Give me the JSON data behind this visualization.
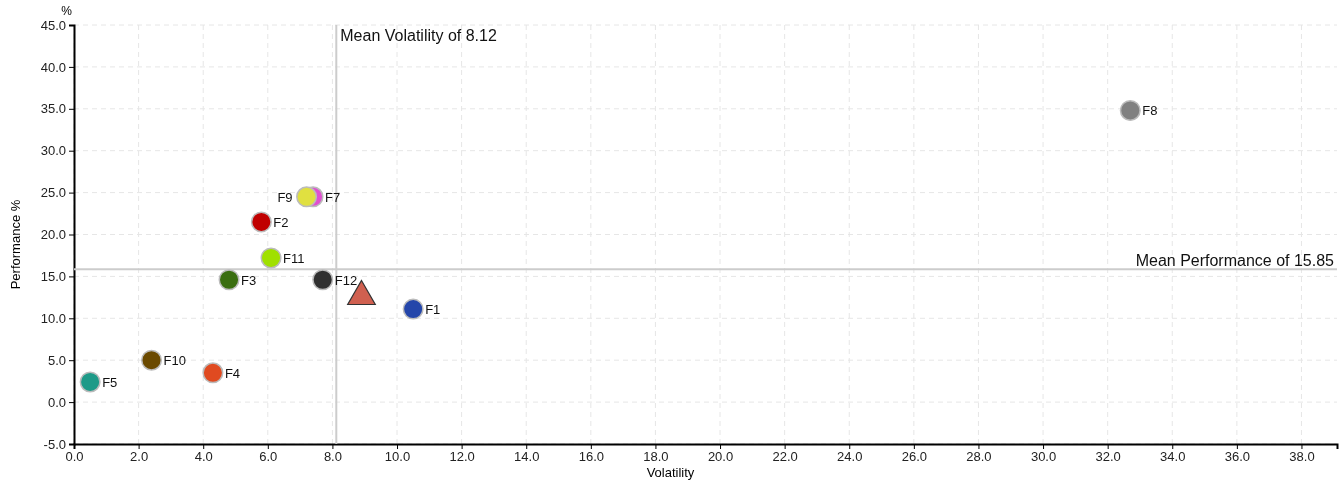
{
  "chart_data": {
    "type": "scatter",
    "xlabel": "Volatility",
    "ylabel": "Performance %",
    "annotations": [
      "%"
    ],
    "xlim": [
      0,
      39.1
    ],
    "xticks": [
      {
        "value": 0,
        "label": "0.0"
      },
      {
        "value": 2,
        "label": "2.0"
      },
      {
        "value": 4,
        "label": "4.0"
      },
      {
        "value": 6,
        "label": "6.0"
      },
      {
        "value": 8,
        "label": "8.0"
      },
      {
        "value": 10,
        "label": "10.0"
      },
      {
        "value": 12,
        "label": "12.0"
      },
      {
        "value": 14,
        "label": "14.0"
      },
      {
        "value": 16,
        "label": "16.0"
      },
      {
        "value": 18,
        "label": "18.0"
      },
      {
        "value": 20,
        "label": "20.0"
      },
      {
        "value": 22,
        "label": "22.0"
      },
      {
        "value": 24,
        "label": "24.0"
      },
      {
        "value": 26,
        "label": "26.0"
      },
      {
        "value": 28,
        "label": "28.0"
      },
      {
        "value": 30,
        "label": "30.0"
      },
      {
        "value": 32,
        "label": "32.0"
      },
      {
        "value": 34,
        "label": "34.0"
      },
      {
        "value": 36,
        "label": "36.0"
      },
      {
        "value": 38,
        "label": "38.0"
      }
    ],
    "ylim": [
      -5,
      45
    ],
    "yticks": [
      {
        "value": -5,
        "label": "-5.0"
      },
      {
        "value": 0,
        "label": "0.0"
      },
      {
        "value": 5,
        "label": "5.0"
      },
      {
        "value": 10,
        "label": "10.0"
      },
      {
        "value": 15,
        "label": "15.0"
      },
      {
        "value": 20,
        "label": "20.0"
      },
      {
        "value": 25,
        "label": "25.0"
      },
      {
        "value": 30,
        "label": "30.0"
      },
      {
        "value": 35,
        "label": "35.0"
      },
      {
        "value": 40,
        "label": "40.0"
      },
      {
        "value": 45,
        "label": "45.0"
      }
    ],
    "grid": true,
    "legend": false,
    "marker": "circle",
    "ref_lines": [
      {
        "axis": "x",
        "value": 8.12,
        "label": "Mean Volatility of 8.12",
        "color": "#cccccc"
      },
      {
        "axis": "y",
        "value": 15.85,
        "label": "Mean Performance of 15.85",
        "color": "#cccccc"
      }
    ],
    "series": [
      {
        "name": "F1",
        "color": "#2446aa",
        "x": [
          10.5
        ],
        "values": [
          11.1
        ]
      },
      {
        "name": "F2",
        "color": "#c00000",
        "x": [
          5.8
        ],
        "values": [
          21.5
        ]
      },
      {
        "name": "F3",
        "color": "#3a6e10",
        "x": [
          4.8
        ],
        "values": [
          14.6
        ]
      },
      {
        "name": "F4",
        "color": "#e04a20",
        "x": [
          4.3
        ],
        "values": [
          3.5
        ]
      },
      {
        "name": "F5",
        "color": "#1e9a88",
        "x": [
          0.5
        ],
        "values": [
          2.4
        ]
      },
      {
        "name": "F7",
        "color": "#e050d0",
        "x": [
          7.4
        ],
        "values": [
          24.5
        ]
      },
      {
        "name": "F8",
        "color": "#808080",
        "x": [
          32.7
        ],
        "values": [
          34.8
        ]
      },
      {
        "name": "F9",
        "color": "#e0e040",
        "x": [
          7.2
        ],
        "values": [
          24.5
        ]
      },
      {
        "name": "F10",
        "color": "#6b4a00",
        "x": [
          2.4
        ],
        "values": [
          5.0
        ]
      },
      {
        "name": "F11",
        "color": "#a0e000",
        "x": [
          6.1
        ],
        "values": [
          17.2
        ]
      },
      {
        "name": "F12",
        "color": "#303030",
        "x": [
          7.7
        ],
        "values": [
          14.6
        ]
      },
      {
        "color": "#d06050",
        "x": [
          8.9
        ],
        "values": [
          12.6
        ],
        "marker": "triangle"
      }
    ]
  }
}
